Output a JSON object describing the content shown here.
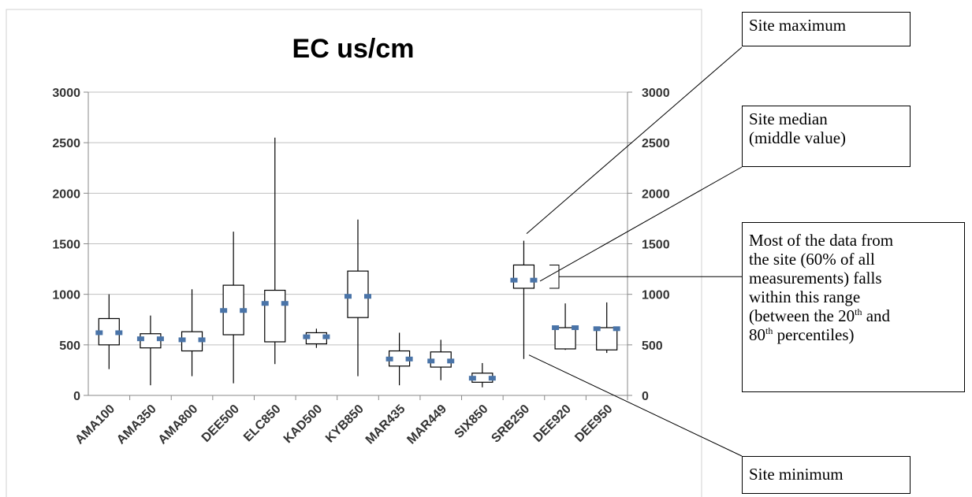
{
  "chart_data": {
    "type": "boxplot",
    "title": "EC us/cm",
    "xlabel": "",
    "ylabel": "",
    "ylim": [
      0,
      3000
    ],
    "yticks": [
      0,
      500,
      1000,
      1500,
      2000,
      2500,
      3000
    ],
    "secondary_y_axis": true,
    "grid": true,
    "categories": [
      "AMA100",
      "AMA350",
      "AMA800",
      "DEE500",
      "ELC850",
      "KAD500",
      "KYB850",
      "MAR435",
      "MAR449",
      "SIX850",
      "SRB250",
      "DEE920",
      "DEE950"
    ],
    "min": [
      260,
      100,
      190,
      120,
      310,
      470,
      190,
      100,
      150,
      80,
      360,
      450,
      420
    ],
    "p20": [
      500,
      470,
      440,
      600,
      530,
      510,
      770,
      290,
      280,
      130,
      1060,
      460,
      450
    ],
    "median": [
      620,
      560,
      550,
      840,
      910,
      580,
      980,
      360,
      340,
      170,
      1140,
      670,
      660
    ],
    "p80": [
      760,
      610,
      630,
      1090,
      1040,
      620,
      1230,
      440,
      430,
      220,
      1290,
      670,
      670
    ],
    "max": [
      1000,
      790,
      1050,
      1620,
      2550,
      660,
      1740,
      620,
      550,
      320,
      1530,
      910,
      920
    ],
    "colors": {
      "median_marker": "#4a74a8",
      "grid": "#bfbfbf",
      "axis": "#888888",
      "box": "#000000"
    }
  },
  "callouts": {
    "max": "Site maximum",
    "median_line1": "Site median",
    "median_line2": "(middle value)",
    "range_line1": "Most of the data from",
    "range_line2": "the site (60% of all",
    "range_line3": "measurements) falls",
    "range_line4": "within this range",
    "range_line5_a": "(between the 20",
    "range_line5_sup1": "th",
    "range_line5_b": " and",
    "range_line6_a": "80",
    "range_line6_sup": "th",
    "range_line6_b": " percentiles)",
    "min": "Site minimum"
  }
}
